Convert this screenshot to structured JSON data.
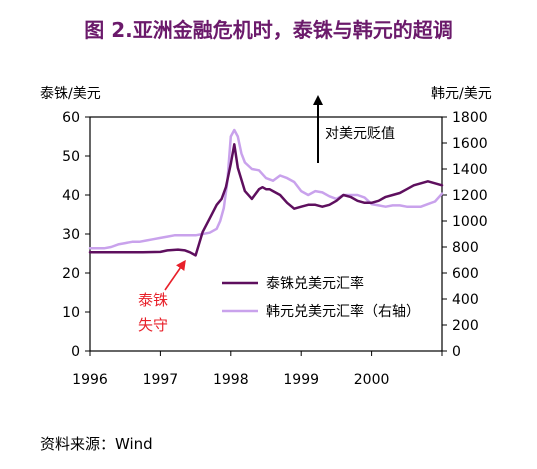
{
  "title": "图 2.亚洲金融危机时，泰铢与韩元的超调",
  "source": "资料来源：Wind",
  "chart_data": {
    "type": "line",
    "left_axis": {
      "label": "泰铢/美元",
      "range": [
        0,
        60
      ],
      "ticks": [
        "0",
        "10",
        "20",
        "30",
        "40",
        "50",
        "60"
      ]
    },
    "right_axis": {
      "label": "韩元/美元",
      "range": [
        0,
        1800
      ],
      "ticks": [
        "0",
        "200",
        "400",
        "600",
        "800",
        "1000",
        "1200",
        "1400",
        "1600",
        "1800"
      ]
    },
    "x_axis": {
      "range": [
        1996,
        2001
      ],
      "ticks": [
        "1996",
        "1997",
        "1998",
        "1999",
        "2000"
      ]
    },
    "grid": false,
    "legend_position": "lower-right",
    "series": [
      {
        "name": "泰铢兑美元汇率",
        "axis": "left",
        "color": "#5e0f5e",
        "x": [
          1996.0,
          1996.25,
          1996.5,
          1996.75,
          1997.0,
          1997.1,
          1997.25,
          1997.35,
          1997.42,
          1997.5,
          1997.55,
          1997.6,
          1997.7,
          1997.8,
          1997.87,
          1997.93,
          1998.0,
          1998.05,
          1998.1,
          1998.2,
          1998.3,
          1998.4,
          1998.45,
          1998.5,
          1998.55,
          1998.6,
          1998.7,
          1998.8,
          1998.9,
          1999.0,
          1999.1,
          1999.2,
          1999.3,
          1999.4,
          1999.5,
          1999.6,
          1999.7,
          1999.8,
          1999.9,
          2000.0,
          2000.1,
          2000.2,
          2000.3,
          2000.4,
          2000.5,
          2000.6,
          2000.7,
          2000.8,
          2000.9,
          2001.0
        ],
        "y": [
          25.3,
          25.3,
          25.3,
          25.3,
          25.4,
          25.8,
          26.0,
          25.8,
          25.3,
          24.5,
          27.5,
          30.5,
          34.0,
          37.5,
          39.0,
          42.0,
          48.0,
          53.0,
          47.0,
          41.0,
          39.0,
          41.5,
          42.0,
          41.5,
          41.5,
          41.0,
          40.0,
          38.0,
          36.5,
          37.0,
          37.5,
          37.5,
          37.0,
          37.5,
          38.5,
          40.0,
          39.5,
          38.5,
          38.0,
          38.0,
          38.5,
          39.5,
          40.0,
          40.5,
          41.5,
          42.5,
          43.0,
          43.5,
          43.0,
          42.5
        ]
      },
      {
        "name": "韩元兑美元汇率（右轴）",
        "axis": "right",
        "color": "#c9a2ec",
        "x": [
          1996.0,
          1996.1,
          1996.2,
          1996.3,
          1996.4,
          1996.5,
          1996.6,
          1996.7,
          1996.8,
          1996.9,
          1997.0,
          1997.1,
          1997.2,
          1997.3,
          1997.4,
          1997.5,
          1997.6,
          1997.7,
          1997.8,
          1997.85,
          1997.9,
          1997.95,
          1998.0,
          1998.05,
          1998.1,
          1998.15,
          1998.2,
          1998.3,
          1998.4,
          1998.5,
          1998.6,
          1998.7,
          1998.8,
          1998.9,
          1999.0,
          1999.1,
          1999.2,
          1999.3,
          1999.4,
          1999.5,
          1999.6,
          1999.7,
          1999.8,
          1999.9,
          2000.0,
          2000.1,
          2000.2,
          2000.3,
          2000.4,
          2000.5,
          2000.6,
          2000.7,
          2000.8,
          2000.9,
          2001.0
        ],
        "y": [
          790,
          790,
          790,
          800,
          820,
          830,
          840,
          840,
          850,
          860,
          870,
          880,
          890,
          890,
          890,
          890,
          900,
          910,
          940,
          1000,
          1100,
          1300,
          1650,
          1700,
          1650,
          1520,
          1450,
          1400,
          1390,
          1330,
          1310,
          1350,
          1330,
          1300,
          1230,
          1200,
          1230,
          1220,
          1190,
          1170,
          1200,
          1200,
          1200,
          1180,
          1130,
          1120,
          1110,
          1120,
          1120,
          1110,
          1110,
          1110,
          1130,
          1150,
          1210
        ]
      }
    ],
    "annotations": [
      {
        "text": "对美元贬值",
        "color": "#000000",
        "arrow": "up"
      },
      {
        "text_lines": [
          "泰铢",
          "失守"
        ],
        "color": "#e8202a",
        "arrow": "up-right"
      }
    ]
  }
}
